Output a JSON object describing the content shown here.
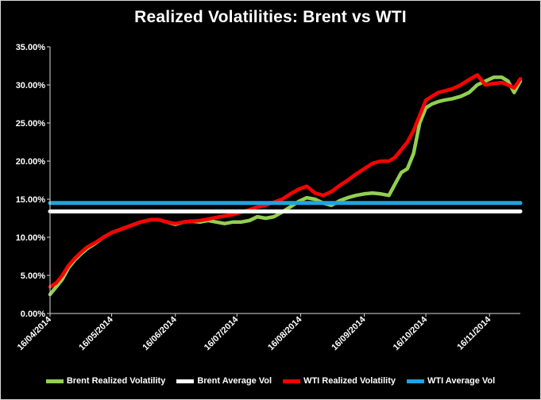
{
  "chart_data": {
    "type": "line",
    "title": "Realized Volatilities: Brent vs WTI",
    "xlabel": "",
    "ylabel": "",
    "ylim": [
      0,
      0.35
    ],
    "yticks": [
      "0.00%",
      "5.00%",
      "10.00%",
      "15.00%",
      "20.00%",
      "25.00%",
      "30.00%",
      "35.00%"
    ],
    "xticks": [
      "16/04/2014",
      "16/05/2014",
      "16/06/2014",
      "16/07/2014",
      "16/08/2014",
      "16/09/2014",
      "16/10/2014",
      "16/11/2014"
    ],
    "xlim": [
      "2014-04-16",
      "2014-12-01"
    ],
    "grid": false,
    "legend_position": "bottom",
    "series": [
      {
        "name": "Brent Realized Volatility",
        "color": "#92d050",
        "x": [
          "2014-04-16",
          "2014-04-19",
          "2014-04-22",
          "2014-04-25",
          "2014-04-28",
          "2014-05-01",
          "2014-05-04",
          "2014-05-08",
          "2014-05-12",
          "2014-05-16",
          "2014-05-20",
          "2014-05-25",
          "2014-05-30",
          "2014-06-04",
          "2014-06-08",
          "2014-06-12",
          "2014-06-16",
          "2014-06-20",
          "2014-06-24",
          "2014-06-28",
          "2014-07-02",
          "2014-07-06",
          "2014-07-10",
          "2014-07-14",
          "2014-07-18",
          "2014-07-22",
          "2014-07-26",
          "2014-07-30",
          "2014-08-03",
          "2014-08-07",
          "2014-08-11",
          "2014-08-15",
          "2014-08-19",
          "2014-08-23",
          "2014-08-27",
          "2014-08-31",
          "2014-09-04",
          "2014-09-08",
          "2014-09-12",
          "2014-09-16",
          "2014-09-20",
          "2014-09-24",
          "2014-09-28",
          "2014-10-01",
          "2014-10-04",
          "2014-10-07",
          "2014-10-10",
          "2014-10-13",
          "2014-10-16",
          "2014-10-19",
          "2014-10-22",
          "2014-10-25",
          "2014-10-29",
          "2014-11-02",
          "2014-11-06",
          "2014-11-10",
          "2014-11-14",
          "2014-11-18",
          "2014-11-22",
          "2014-11-25",
          "2014-11-28",
          "2014-12-01"
        ],
        "values": [
          0.025,
          0.035,
          0.045,
          0.06,
          0.07,
          0.078,
          0.085,
          0.092,
          0.1,
          0.106,
          0.11,
          0.115,
          0.12,
          0.123,
          0.123,
          0.12,
          0.117,
          0.12,
          0.121,
          0.12,
          0.122,
          0.12,
          0.118,
          0.12,
          0.12,
          0.122,
          0.127,
          0.125,
          0.127,
          0.133,
          0.14,
          0.147,
          0.152,
          0.15,
          0.145,
          0.142,
          0.148,
          0.152,
          0.155,
          0.157,
          0.158,
          0.157,
          0.155,
          0.17,
          0.185,
          0.19,
          0.21,
          0.25,
          0.27,
          0.275,
          0.278,
          0.28,
          0.282,
          0.285,
          0.29,
          0.3,
          0.305,
          0.31,
          0.31,
          0.305,
          0.29,
          0.305
        ]
      },
      {
        "name": "Brent Average Vol",
        "color": "#ffffff",
        "x": [
          "2014-04-16",
          "2014-12-01"
        ],
        "values": [
          0.134,
          0.134
        ]
      },
      {
        "name": "WTI Realized Volatility",
        "color": "#ff0000",
        "x": [
          "2014-04-16",
          "2014-04-19",
          "2014-04-22",
          "2014-04-25",
          "2014-04-28",
          "2014-05-01",
          "2014-05-04",
          "2014-05-08",
          "2014-05-12",
          "2014-05-16",
          "2014-05-20",
          "2014-05-25",
          "2014-05-30",
          "2014-06-04",
          "2014-06-08",
          "2014-06-12",
          "2014-06-16",
          "2014-06-20",
          "2014-06-24",
          "2014-06-28",
          "2014-07-02",
          "2014-07-06",
          "2014-07-10",
          "2014-07-14",
          "2014-07-18",
          "2014-07-22",
          "2014-07-26",
          "2014-07-30",
          "2014-08-03",
          "2014-08-07",
          "2014-08-11",
          "2014-08-15",
          "2014-08-19",
          "2014-08-23",
          "2014-08-27",
          "2014-08-31",
          "2014-09-04",
          "2014-09-08",
          "2014-09-12",
          "2014-09-16",
          "2014-09-20",
          "2014-09-24",
          "2014-09-28",
          "2014-10-01",
          "2014-10-04",
          "2014-10-07",
          "2014-10-10",
          "2014-10-13",
          "2014-10-16",
          "2014-10-19",
          "2014-10-22",
          "2014-10-25",
          "2014-10-29",
          "2014-11-02",
          "2014-11-06",
          "2014-11-10",
          "2014-11-14",
          "2014-11-18",
          "2014-11-22",
          "2014-11-25",
          "2014-11-28",
          "2014-12-01"
        ],
        "values": [
          0.035,
          0.04,
          0.05,
          0.063,
          0.072,
          0.08,
          0.087,
          0.093,
          0.1,
          0.106,
          0.11,
          0.115,
          0.12,
          0.123,
          0.123,
          0.12,
          0.118,
          0.12,
          0.121,
          0.122,
          0.124,
          0.126,
          0.128,
          0.13,
          0.133,
          0.136,
          0.14,
          0.142,
          0.146,
          0.15,
          0.157,
          0.163,
          0.167,
          0.158,
          0.155,
          0.16,
          0.168,
          0.175,
          0.183,
          0.19,
          0.197,
          0.2,
          0.2,
          0.205,
          0.215,
          0.225,
          0.24,
          0.26,
          0.28,
          0.285,
          0.29,
          0.292,
          0.295,
          0.3,
          0.307,
          0.313,
          0.3,
          0.302,
          0.303,
          0.3,
          0.296,
          0.308
        ]
      },
      {
        "name": "WTI Average Vol",
        "color": "#1fa4e0",
        "x": [
          "2014-04-16",
          "2014-12-01"
        ],
        "values": [
          0.145,
          0.145
        ]
      }
    ]
  }
}
